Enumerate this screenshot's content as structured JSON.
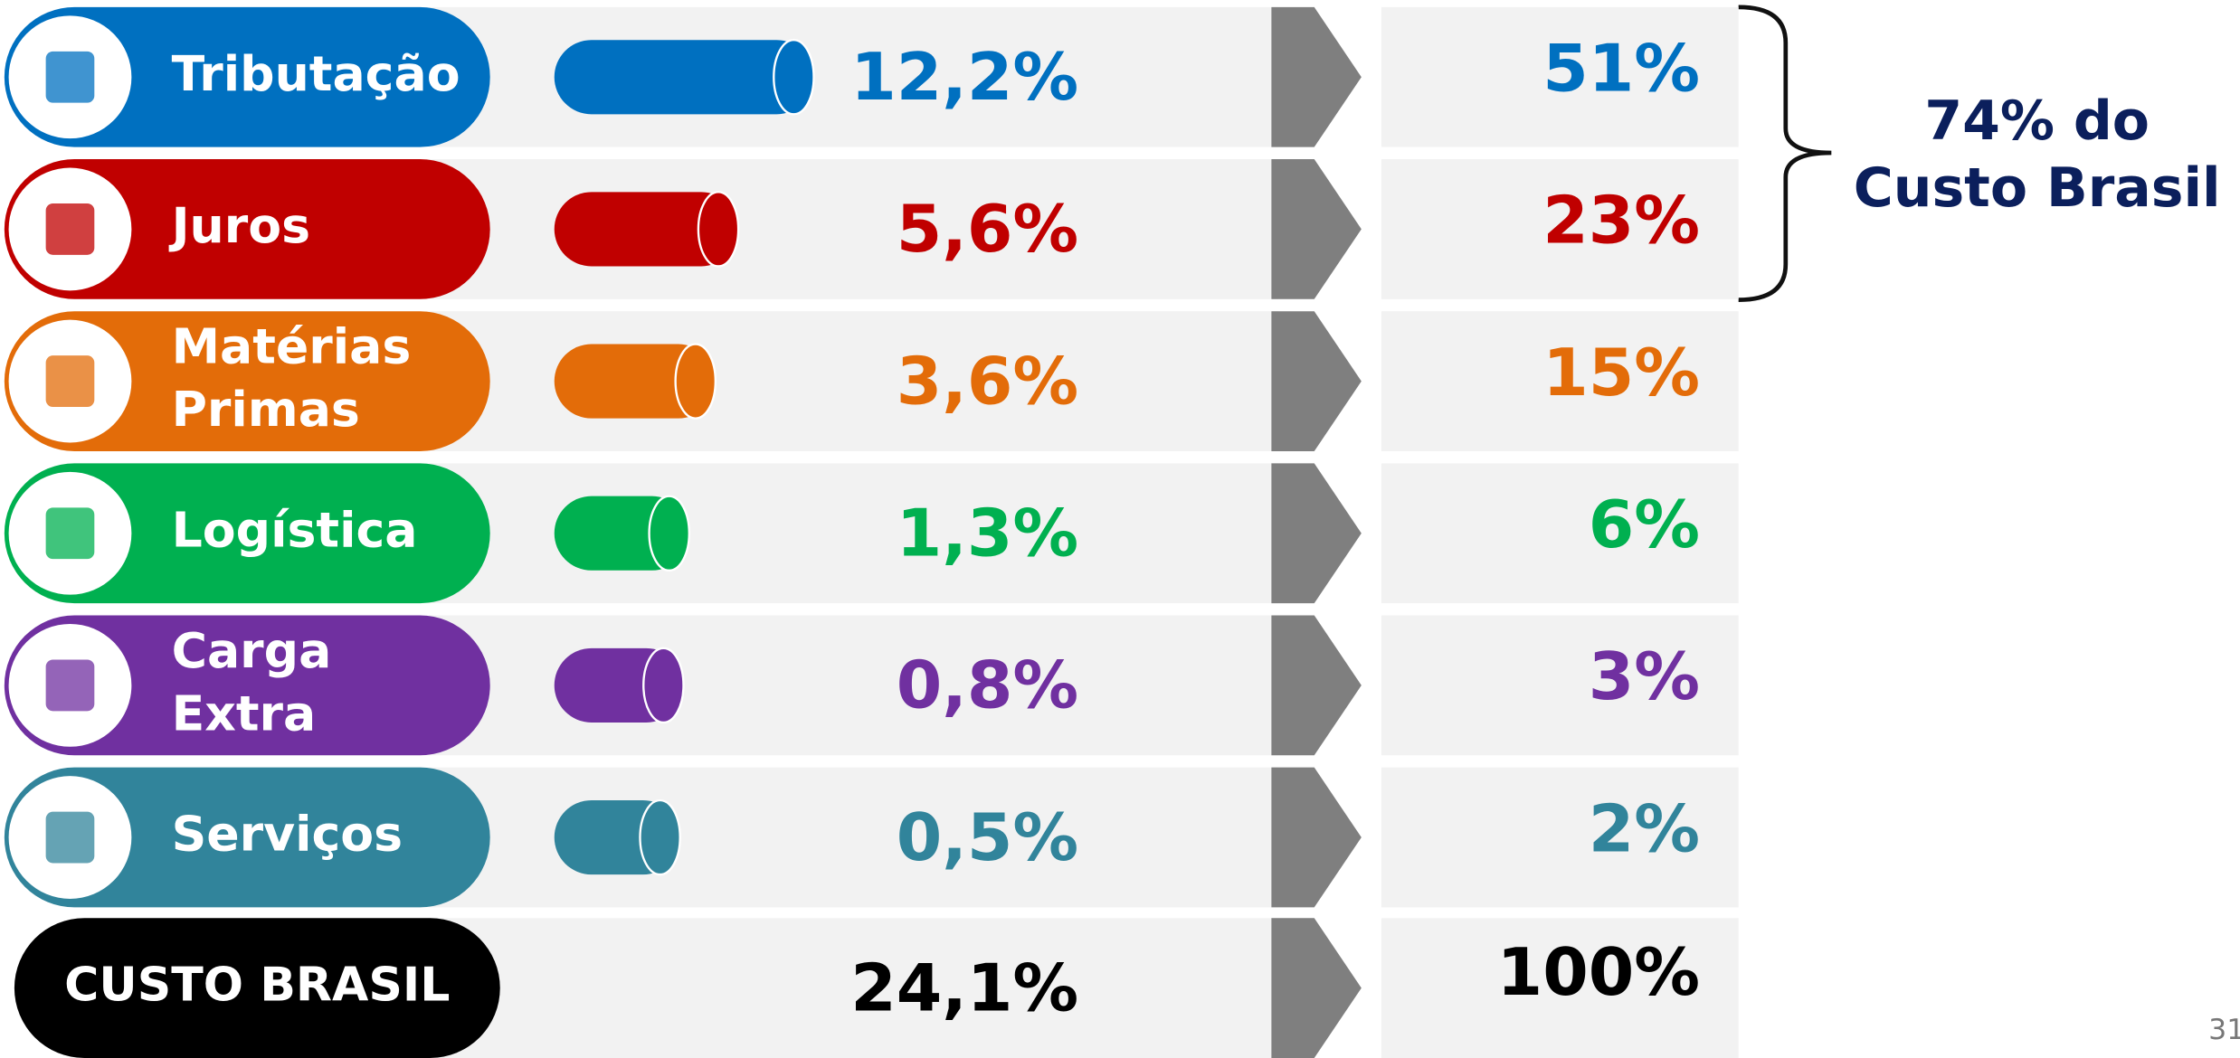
{
  "rows": [
    {
      "label": [
        "Tributação"
      ],
      "color": "#0070c0",
      "value": 12.2,
      "value_label": "12,2%",
      "share": "51%"
    },
    {
      "label": [
        "Juros"
      ],
      "color": "#c00000",
      "value": 5.6,
      "value_label": "5,6%",
      "share": "23%"
    },
    {
      "label": [
        "Matérias",
        "Primas"
      ],
      "color": "#e36c09",
      "value": 3.6,
      "value_label": "3,6%",
      "share": "15%"
    },
    {
      "label": [
        "Logística"
      ],
      "color": "#00b050",
      "value": 1.3,
      "value_label": "1,3%",
      "share": "6%"
    },
    {
      "label": [
        "Carga",
        "Extra"
      ],
      "color": "#7030a0",
      "value": 0.8,
      "value_label": "0,8%",
      "share": "3%"
    },
    {
      "label": [
        "Serviços"
      ],
      "color": "#31849b",
      "value": 0.5,
      "value_label": "0,5%",
      "share": "2%"
    }
  ],
  "total": {
    "label": "CUSTO BRASIL",
    "color": "#000000",
    "value_label": "24,1%",
    "share": "100%"
  },
  "bracket_note": [
    "74% do",
    "Custo Brasil"
  ],
  "page_number": "31"
}
